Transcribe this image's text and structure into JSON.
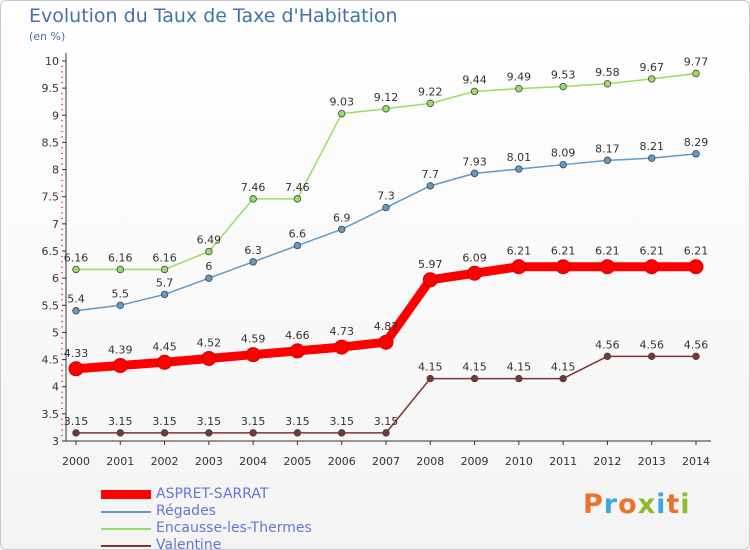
{
  "chart_data": {
    "type": "line",
    "title": "Evolution du Taux de Taxe d'Habitation",
    "subtitle": "(en %)",
    "x": [
      "2000",
      "2001",
      "2002",
      "2003",
      "2004",
      "2005",
      "2006",
      "2007",
      "2008",
      "2009",
      "2010",
      "2011",
      "2012",
      "2013",
      "2014"
    ],
    "yticks": [
      "3",
      "3.5",
      "4",
      "4.5",
      "5",
      "5.5",
      "6",
      "6.5",
      "7",
      "7.5",
      "8",
      "8.5",
      "9",
      "9.5",
      "10"
    ],
    "ylim": [
      3,
      10
    ],
    "grid": false,
    "legend_position": "bottom-left",
    "series": [
      {
        "name": "ASPRET-SARRAT",
        "color": "#ff0000",
        "values": [
          4.33,
          4.39,
          4.45,
          4.52,
          4.59,
          4.66,
          4.73,
          4.82,
          5.97,
          6.09,
          6.21,
          6.21,
          6.21,
          6.21,
          6.21
        ],
        "labels": [
          "4.33",
          "4.39",
          "4.45",
          "4.52",
          "4.59",
          "4.66",
          "4.73",
          "4.82",
          "5.97",
          "6.09",
          "6.21",
          "6.21",
          "6.21",
          "6.21",
          "6.21"
        ]
      },
      {
        "name": "Régades",
        "color": "#6399c7",
        "values": [
          5.4,
          5.5,
          5.7,
          6,
          6.3,
          6.6,
          6.9,
          7.3,
          7.7,
          7.93,
          8.01,
          8.09,
          8.17,
          8.21,
          8.29
        ],
        "labels": [
          "5.4",
          "5.5",
          "5.7",
          "6",
          "6.3",
          "6.6",
          "6.9",
          "7.3",
          "7.7",
          "7.93",
          "8.01",
          "8.09",
          "8.17",
          "8.21",
          "8.29"
        ]
      },
      {
        "name": "Encausse-les-Thermes",
        "color": "#99dd66",
        "values": [
          6.16,
          6.16,
          6.16,
          6.49,
          7.46,
          7.46,
          9.03,
          9.12,
          9.22,
          9.44,
          9.49,
          9.53,
          9.58,
          9.67,
          9.77
        ],
        "labels": [
          "6.16",
          "6.16",
          "6.16",
          "6.49",
          "7.46",
          "7.46",
          "9.03",
          "9.12",
          "9.22",
          "9.44",
          "9.49",
          "9.53",
          "9.58",
          "9.67",
          "9.77"
        ]
      },
      {
        "name": "Valentine",
        "color": "#7a3535",
        "values": [
          3.15,
          3.15,
          3.15,
          3.15,
          3.15,
          3.15,
          3.15,
          3.15,
          4.15,
          4.15,
          4.15,
          4.15,
          4.56,
          4.56,
          4.56
        ],
        "labels": [
          "3.15",
          "3.15",
          "3.15",
          "3.15",
          "3.15",
          "3.15",
          "3.15",
          "3.15",
          "4.15",
          "4.15",
          "4.15",
          "4.15",
          "4.56",
          "4.56",
          "4.56"
        ]
      }
    ]
  },
  "legend": {
    "items": [
      {
        "label": "ASPRET-SARRAT",
        "color": "#ff0000"
      },
      {
        "label": "Régades",
        "color": "#6399c7"
      },
      {
        "label": "Encausse-les-Thermes",
        "color": "#99dd66"
      },
      {
        "label": "Valentine",
        "color": "#7a3535"
      }
    ]
  },
  "logo": {
    "letters": [
      "P",
      "r",
      "o",
      "x",
      "i",
      "t",
      "i"
    ],
    "colors": [
      "#e8732a",
      "#3fa9dc",
      "#e8732a",
      "#8dbb2b",
      "#3fa9dc",
      "#e8732a",
      "#8dbb2b"
    ]
  }
}
